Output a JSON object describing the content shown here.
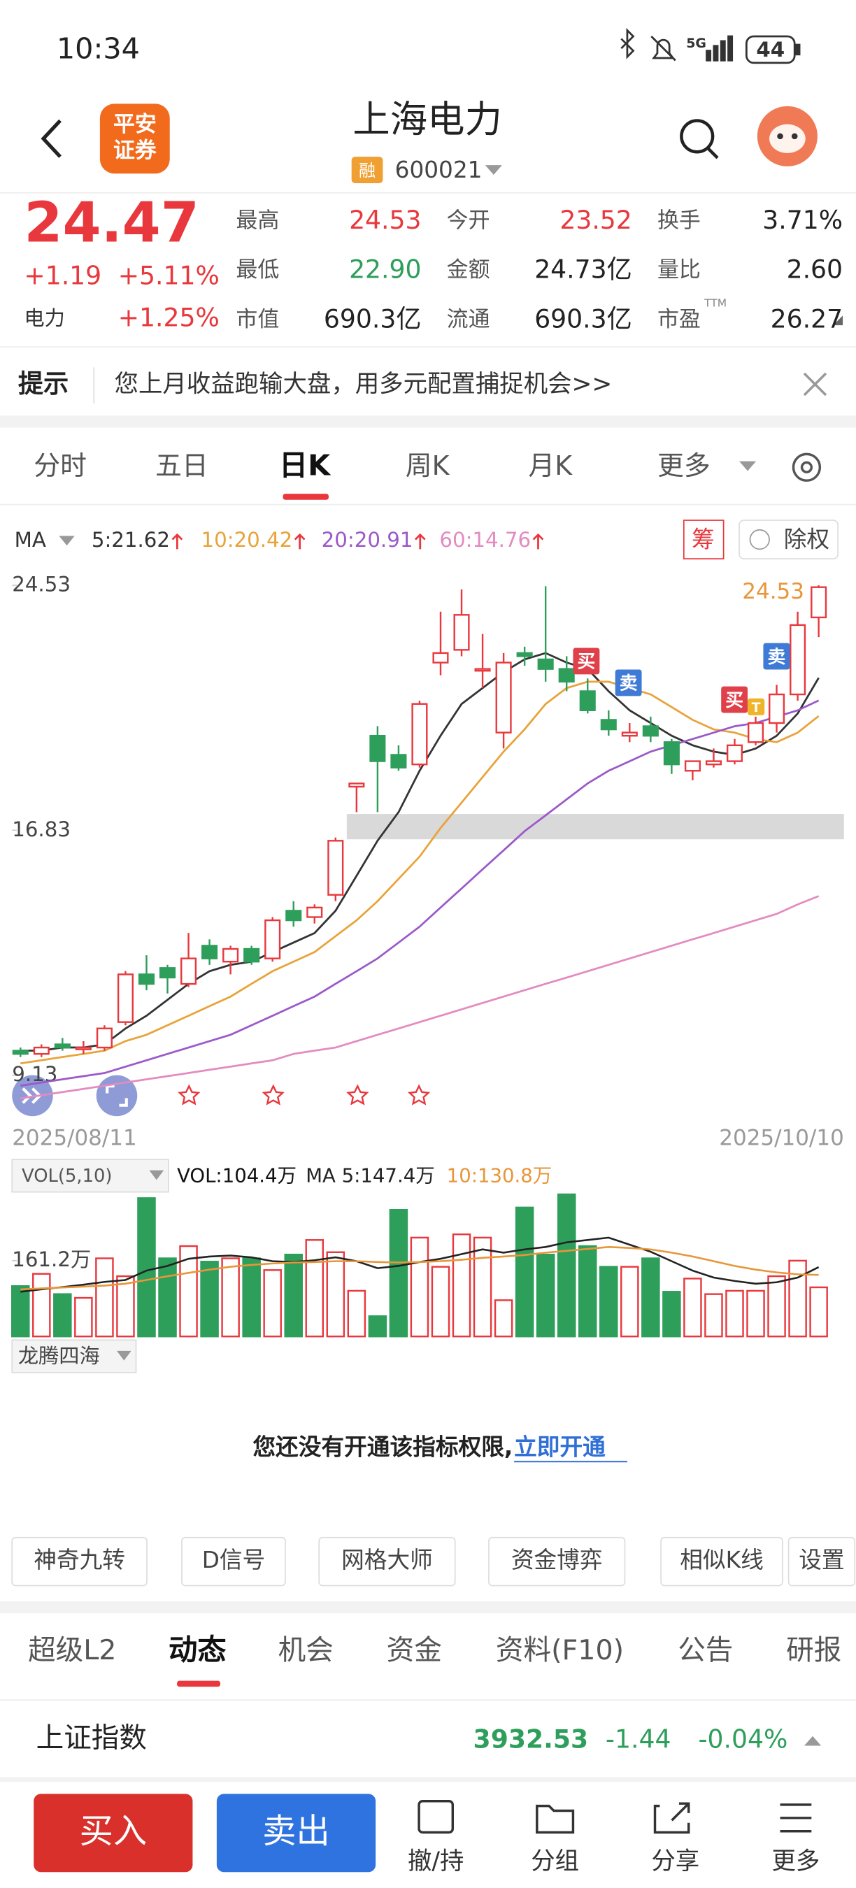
{
  "status_bar": {
    "time": "10:34",
    "network": "5G",
    "battery": "44"
  },
  "header": {
    "logo": [
      "平安",
      "证券"
    ],
    "title": "上海电力",
    "badge": "融",
    "code": "600021"
  },
  "quote": {
    "price": "24.47",
    "change": "+1.19",
    "change_percent": "+5.11%",
    "sector": "电力",
    "sector_change": "+1.25%",
    "stats": [
      [
        {
          "label": "最高",
          "value": "24.53",
          "color": "#e8383d"
        },
        {
          "label": "今开",
          "value": "23.52",
          "color": "#e8383d"
        },
        {
          "label": "换手",
          "value": "3.71%",
          "color": "#222222"
        }
      ],
      [
        {
          "label": "最低",
          "value": "22.90",
          "color": "#2e9e5b"
        },
        {
          "label": "金额",
          "value": "24.73亿",
          "color": "#222222"
        },
        {
          "label": "量比",
          "value": "2.60",
          "color": "#222222"
        }
      ],
      [
        {
          "label": "市值",
          "value": "690.3亿",
          "color": "#222222"
        },
        {
          "label": "流通",
          "value": "690.3亿",
          "color": "#222222"
        },
        {
          "label": "市盈",
          "sup": "TTM",
          "value": "26.27",
          "color": "#222222"
        }
      ]
    ]
  },
  "tip": {
    "label": "提示",
    "text": "您上月收益跑输大盘，用多元配置捕捉机会>>"
  },
  "period_tabs": {
    "items": [
      "分时",
      "五日",
      "日K",
      "周K",
      "月K",
      "更多"
    ],
    "active": 2
  },
  "chart_tools": {
    "chip": "筹",
    "ex_rights": "除权"
  },
  "signals": [
    "买",
    "卖",
    "买",
    "卖",
    "T"
  ],
  "chart_data": [
    {
      "type": "candlestick",
      "categories": [
        "2025/08/11",
        null,
        null,
        null,
        null,
        null,
        null,
        null,
        null,
        null,
        null,
        null,
        null,
        null,
        null,
        null,
        null,
        null,
        null,
        null,
        null,
        null,
        null,
        null,
        null,
        null,
        null,
        null,
        null,
        null,
        null,
        null,
        null,
        null,
        null,
        null,
        null,
        null,
        "2025/10/10"
      ],
      "open": [
        9.9,
        9.8,
        10.1,
        10.0,
        10.0,
        10.8,
        12.3,
        12.5,
        12.0,
        13.2,
        12.7,
        13.1,
        12.8,
        14.3,
        14.1,
        14.8,
        18.2,
        19.8,
        19.2,
        18.9,
        22.1,
        22.5,
        21.9,
        19.9,
        22.4,
        22.2,
        21.9,
        21.2,
        20.3,
        19.8,
        20.1,
        19.6,
        18.7,
        18.9,
        19.0,
        19.6,
        20.2,
        21.1,
        23.52
      ],
      "high": [
        10.0,
        10.1,
        10.3,
        10.2,
        10.7,
        12.4,
        12.9,
        12.6,
        13.6,
        13.4,
        13.2,
        13.2,
        14.1,
        14.6,
        14.5,
        16.6,
        18.3,
        20.1,
        19.5,
        20.9,
        23.7,
        24.4,
        23.0,
        22.4,
        22.6,
        24.5,
        22.3,
        21.6,
        20.6,
        20.2,
        20.4,
        19.7,
        19.0,
        19.4,
        19.7,
        20.4,
        21.4,
        23.7,
        24.53
      ],
      "low": [
        9.7,
        9.7,
        9.9,
        9.8,
        9.9,
        10.7,
        11.8,
        11.7,
        11.9,
        12.6,
        12.3,
        12.6,
        12.7,
        13.8,
        13.9,
        14.6,
        17.4,
        17.4,
        18.7,
        18.8,
        21.7,
        22.3,
        21.3,
        19.4,
        22.0,
        21.5,
        21.2,
        20.5,
        19.8,
        19.6,
        19.6,
        18.6,
        18.4,
        18.8,
        18.9,
        19.5,
        19.9,
        20.9,
        22.9
      ],
      "close": [
        9.8,
        10.0,
        10.0,
        10.0,
        10.6,
        12.3,
        12.0,
        12.2,
        12.8,
        12.8,
        13.1,
        12.7,
        14.0,
        14.0,
        14.4,
        16.5,
        18.3,
        19.0,
        18.8,
        20.8,
        22.4,
        23.6,
        21.9,
        22.1,
        22.3,
        21.9,
        21.5,
        20.6,
        20.0,
        19.9,
        19.8,
        18.9,
        19.0,
        19.0,
        19.5,
        20.2,
        21.1,
        23.28,
        24.47
      ],
      "up_color": "#e8383d",
      "down_color": "#2e9e5b",
      "ylim": [
        9.13,
        24.53
      ],
      "yticks": [
        9.13,
        16.83,
        24.53
      ],
      "ma_title": "MA",
      "ma_series": [
        {
          "label": "5:21.62",
          "color": "#333333",
          "values": [
            9.9,
            9.9,
            10.0,
            10.0,
            10.1,
            10.6,
            11.0,
            11.5,
            12.0,
            12.4,
            12.6,
            12.7,
            13.0,
            13.3,
            13.6,
            14.3,
            15.4,
            16.5,
            17.4,
            18.7,
            19.8,
            20.8,
            21.3,
            21.8,
            22.2,
            22.4,
            22.1,
            21.9,
            21.2,
            20.6,
            20.2,
            19.8,
            19.5,
            19.3,
            19.2,
            19.4,
            19.8,
            20.5,
            21.62
          ]
        },
        {
          "label": "10:20.42",
          "color": "#e8a33a",
          "values": [
            9.5,
            9.6,
            9.7,
            9.8,
            9.9,
            10.2,
            10.4,
            10.7,
            11.0,
            11.3,
            11.6,
            12.0,
            12.4,
            12.7,
            13.0,
            13.5,
            14.0,
            14.6,
            15.3,
            16.0,
            16.9,
            17.7,
            18.5,
            19.3,
            20.0,
            20.8,
            21.3,
            21.5,
            21.5,
            21.3,
            21.1,
            20.7,
            20.3,
            20.0,
            19.9,
            19.7,
            19.6,
            19.9,
            20.42
          ]
        },
        {
          "label": "20:20.91",
          "color": "#9b59c9",
          "values": [
            8.8,
            8.9,
            9.0,
            9.1,
            9.2,
            9.4,
            9.6,
            9.8,
            10.0,
            10.2,
            10.4,
            10.7,
            11.0,
            11.3,
            11.6,
            12.0,
            12.4,
            12.8,
            13.3,
            13.8,
            14.4,
            15.0,
            15.6,
            16.2,
            16.8,
            17.3,
            17.8,
            18.3,
            18.7,
            19.0,
            19.3,
            19.5,
            19.7,
            19.9,
            20.1,
            20.2,
            20.4,
            20.6,
            20.91
          ]
        },
        {
          "label": "60:14.76",
          "color": "#e38bc0",
          "values": [
            8.4,
            8.5,
            8.6,
            8.7,
            8.8,
            8.9,
            9.0,
            9.1,
            9.2,
            9.3,
            9.4,
            9.5,
            9.6,
            9.8,
            9.9,
            10.0,
            10.2,
            10.4,
            10.6,
            10.8,
            11.0,
            11.2,
            11.4,
            11.6,
            11.8,
            12.0,
            12.2,
            12.4,
            12.6,
            12.8,
            13.0,
            13.2,
            13.4,
            13.6,
            13.8,
            14.0,
            14.2,
            14.5,
            14.76
          ]
        }
      ]
    },
    {
      "type": "bar",
      "title": "VOL(5,10)",
      "value_title": "VOL:104.4万",
      "values": [
        107,
        133,
        90,
        82,
        166,
        128,
        294,
        166,
        192,
        159,
        166,
        166,
        141,
        174,
        205,
        179,
        97,
        43,
        269,
        210,
        148,
        217,
        210,
        77,
        274,
        174,
        302,
        192,
        148,
        148,
        166,
        95,
        123,
        90,
        97,
        97,
        128,
        161,
        104.4
      ],
      "ylim": [
        0,
        307
      ],
      "yticks": [
        {
          "value": 161.2,
          "label": "161.2万"
        }
      ],
      "ma_series": [
        {
          "label": "MA 5:147.4万",
          "color": "#222222",
          "values": [
            95,
            100,
            105,
            110,
            116,
            120,
            140,
            150,
            165,
            170,
            172,
            168,
            160,
            158,
            162,
            168,
            160,
            145,
            150,
            158,
            165,
            175,
            185,
            178,
            185,
            190,
            200,
            205,
            210,
            195,
            180,
            160,
            140,
            125,
            118,
            112,
            115,
            125,
            147.4
          ]
        },
        {
          "label": "10:130.8万",
          "color": "#e8963a",
          "values": [
            100,
            102,
            104,
            106,
            108,
            112,
            120,
            128,
            135,
            142,
            148,
            152,
            155,
            157,
            158,
            160,
            160,
            158,
            157,
            158,
            160,
            163,
            167,
            170,
            173,
            178,
            182,
            186,
            190,
            188,
            185,
            178,
            170,
            160,
            150,
            142,
            136,
            132,
            130.8
          ]
        }
      ]
    }
  ],
  "indicator": {
    "name": "龙腾四海",
    "message": "您还没有开通该指标权限,",
    "link": "立即开通"
  },
  "tools": [
    "神奇九转",
    "D信号",
    "网格大师",
    "资金博弈",
    "相似K线",
    "设置"
  ],
  "info_tabs": {
    "items": [
      "超级L2",
      "动态",
      "机会",
      "资金",
      "资料(F10)",
      "公告",
      "研报"
    ],
    "active": 1
  },
  "index_row": {
    "name": "上证指数",
    "value": "3932.53",
    "change": "-1.44",
    "change_percent": "-0.04%"
  },
  "bottom_bar": {
    "buy": "买入",
    "sell": "卖出",
    "actions": [
      "撤/持",
      "分组",
      "分享",
      "更多"
    ]
  }
}
